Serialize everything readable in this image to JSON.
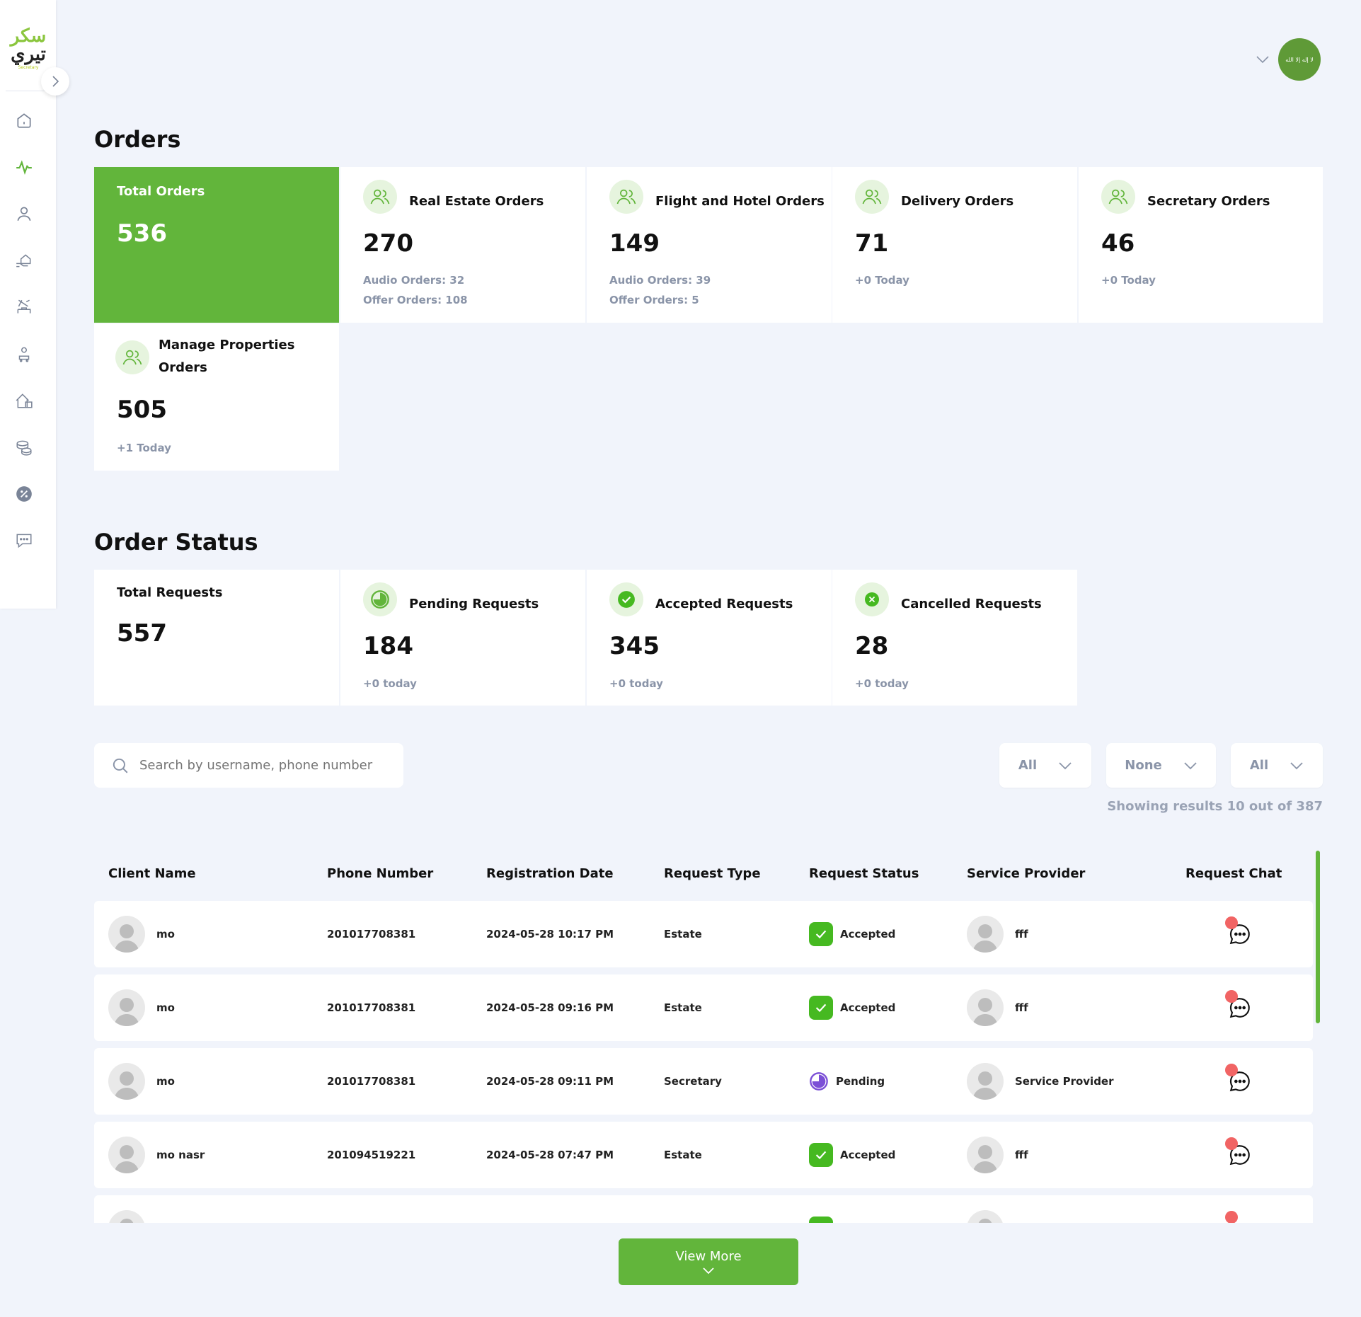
{
  "logo": {
    "line1": "سكر",
    "line2": "تيري",
    "line3": "Secretary"
  },
  "sidebar": {
    "items": [
      "home",
      "activity",
      "user",
      "hand-home",
      "travel",
      "delivery",
      "properties",
      "money",
      "discount",
      "chat"
    ]
  },
  "header": {
    "flag_text": "لا إله إلا الله"
  },
  "orders": {
    "title": "Orders",
    "total": {
      "label": "Total Orders",
      "value": "536"
    },
    "cards": [
      {
        "label": "Real Estate Orders",
        "value": "270",
        "sub1": "Audio Orders: 32",
        "sub2": "Offer Orders: 108"
      },
      {
        "label": "Flight and Hotel Orders",
        "value": "149",
        "sub1": "Audio Orders: 39",
        "sub2": "Offer Orders: 5"
      },
      {
        "label": "Delivery Orders",
        "value": "71",
        "sub1": "+0 Today",
        "sub2": ""
      },
      {
        "label": "Secretary Orders",
        "value": "46",
        "sub1": "+0 Today",
        "sub2": ""
      }
    ],
    "manage": {
      "label_line1": "Manage Properties",
      "label_line2": "Orders",
      "value": "505",
      "sub1": "+1 Today"
    }
  },
  "order_status": {
    "title": "Order Status",
    "total": {
      "label": "Total Requests",
      "value": "557"
    },
    "pending": {
      "label": "Pending Requests",
      "value": "184",
      "sub": "+0 today"
    },
    "accepted": {
      "label": "Accepted Requests",
      "value": "345",
      "sub": "+0 today"
    },
    "cancelled": {
      "label": "Cancelled Requests",
      "value": "28",
      "sub": "+0 today"
    }
  },
  "search": {
    "placeholder": "Search by username, phone number"
  },
  "filters": [
    "All",
    "None",
    "All"
  ],
  "results_text": "Showing results 10 out of 387",
  "table": {
    "headers": [
      "Client Name",
      "Phone Number",
      "Registration Date",
      "Request Type",
      "Request Status",
      "Service Provider",
      "Request Chat"
    ],
    "rows": [
      {
        "name": "mo",
        "phone": "201017708381",
        "date": "2024-05-28 10:17 PM",
        "type": "Estate",
        "status": "Accepted",
        "provider": "fff"
      },
      {
        "name": "mo",
        "phone": "201017708381",
        "date": "2024-05-28 09:16 PM",
        "type": "Estate",
        "status": "Accepted",
        "provider": "fff"
      },
      {
        "name": "mo",
        "phone": "201017708381",
        "date": "2024-05-28 09:11 PM",
        "type": "Secretary",
        "status": "Pending",
        "provider": "Service Provider"
      },
      {
        "name": "mo nasr",
        "phone": "201094519221",
        "date": "2024-05-28 07:47 PM",
        "type": "Estate",
        "status": "Accepted",
        "provider": "fff"
      }
    ]
  },
  "view_more": "View More",
  "colors": {
    "accent": "#62b53b",
    "pending": "#7b4fd6",
    "chat_dot": "#f16464"
  }
}
